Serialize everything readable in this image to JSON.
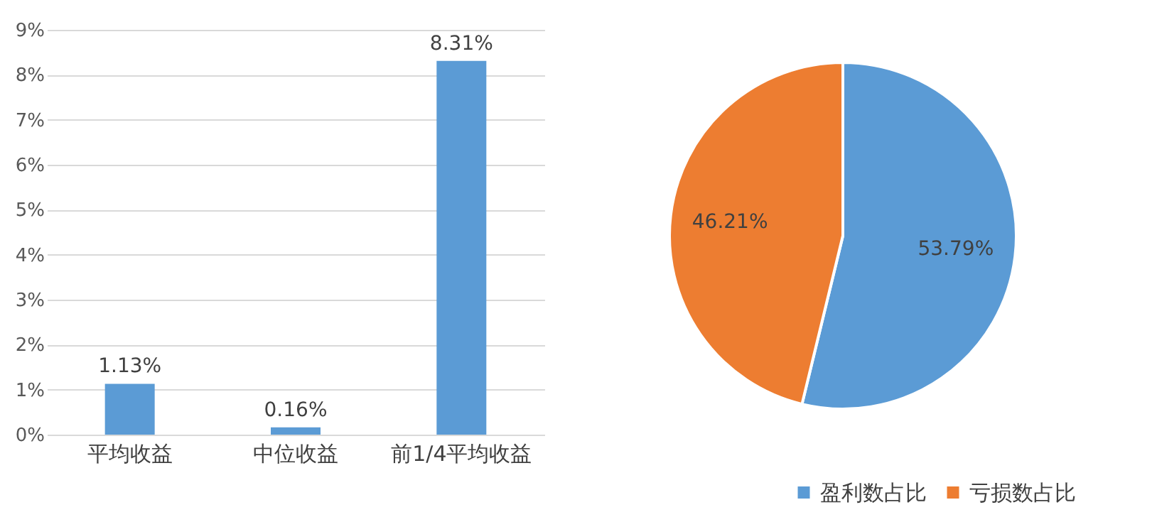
{
  "chart_data": [
    {
      "type": "bar",
      "categories": [
        "平均收益",
        "中位收益",
        "前1/4平均收益"
      ],
      "values": [
        1.13,
        0.16,
        8.31
      ],
      "color": "#5b9bd5",
      "value_labels": [
        "1.13%",
        "0.16%",
        "8.31%"
      ],
      "ylim": [
        0,
        9
      ],
      "yticks": [
        {
          "value": 0,
          "label": "0%"
        },
        {
          "value": 1,
          "label": "1%"
        },
        {
          "value": 2,
          "label": "2%"
        },
        {
          "value": 3,
          "label": "3%"
        },
        {
          "value": 4,
          "label": "4%"
        },
        {
          "value": 5,
          "label": "5%"
        },
        {
          "value": 6,
          "label": "6%"
        },
        {
          "value": 7,
          "label": "7%"
        },
        {
          "value": 8,
          "label": "8%"
        },
        {
          "value": 9,
          "label": "9%"
        }
      ],
      "grid": "y"
    },
    {
      "type": "pie",
      "categories": [
        "盈利数占比",
        "亏损数占比"
      ],
      "values": [
        53.79,
        46.21
      ],
      "colors": [
        "#5b9bd5",
        "#ed7d31"
      ],
      "value_labels": [
        "53.79%",
        "46.21%"
      ],
      "legend": "bottom"
    }
  ]
}
